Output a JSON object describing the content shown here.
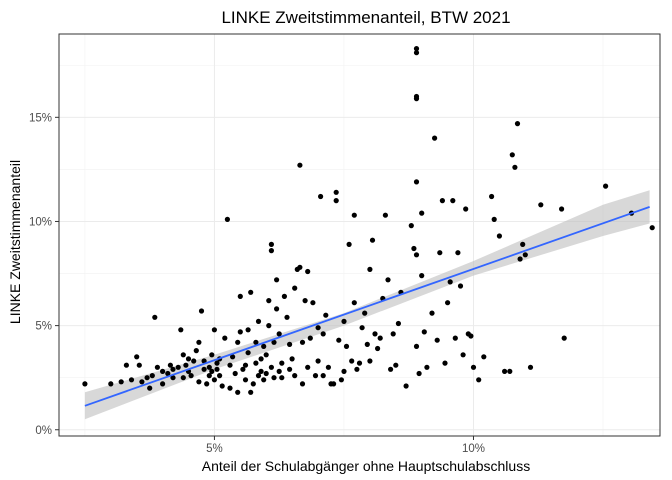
{
  "chart_data": {
    "type": "scatter",
    "title": "LINKE Zweitstimmenanteil, BTW 2021",
    "xlabel": "Anteil der Schulabgänger ohne Hauptschulabschluss",
    "ylabel": "LINKE Zweitstimmenanteil",
    "xlim": [
      2.0,
      13.6
    ],
    "ylim": [
      -0.3,
      19.0
    ],
    "x_ticks": [
      5,
      10
    ],
    "x_tick_labels": [
      "5%",
      "10%"
    ],
    "y_ticks": [
      0,
      5,
      10,
      15
    ],
    "y_tick_labels": [
      "0%",
      "5%",
      "10%",
      "15%"
    ],
    "grid": true,
    "legend": "none",
    "colors": {
      "points": "#000000",
      "trend": "#3366FF",
      "ribbon": "#BEBEBE"
    },
    "trend_line": {
      "x": [
        2.5,
        13.4
      ],
      "y": [
        1.15,
        10.7
      ]
    },
    "confidence_band": {
      "x": [
        2.5,
        5.0,
        7.5,
        10.0,
        12.5,
        13.4
      ],
      "lower": [
        0.5,
        2.9,
        5.0,
        7.4,
        9.3,
        9.9
      ],
      "upper": [
        1.8,
        3.6,
        5.6,
        8.1,
        10.8,
        11.5
      ]
    },
    "points": [
      [
        2.5,
        2.2
      ],
      [
        3.0,
        2.2
      ],
      [
        3.2,
        2.3
      ],
      [
        3.3,
        3.1
      ],
      [
        3.4,
        2.4
      ],
      [
        3.5,
        3.5
      ],
      [
        3.55,
        3.1
      ],
      [
        3.6,
        2.3
      ],
      [
        3.7,
        2.5
      ],
      [
        3.75,
        2.0
      ],
      [
        3.8,
        2.6
      ],
      [
        3.85,
        5.4
      ],
      [
        3.9,
        3.0
      ],
      [
        4.0,
        2.2
      ],
      [
        4.0,
        2.8
      ],
      [
        4.1,
        2.7
      ],
      [
        4.15,
        3.1
      ],
      [
        4.2,
        2.9
      ],
      [
        4.2,
        2.5
      ],
      [
        4.3,
        3.0
      ],
      [
        4.35,
        4.8
      ],
      [
        4.4,
        2.5
      ],
      [
        4.4,
        3.6
      ],
      [
        4.45,
        3.1
      ],
      [
        4.5,
        3.4
      ],
      [
        4.5,
        2.8
      ],
      [
        4.55,
        2.6
      ],
      [
        4.6,
        3.3
      ],
      [
        4.65,
        3.8
      ],
      [
        4.7,
        2.3
      ],
      [
        4.7,
        4.2
      ],
      [
        4.75,
        5.7
      ],
      [
        4.8,
        2.9
      ],
      [
        4.8,
        3.3
      ],
      [
        4.85,
        2.2
      ],
      [
        4.9,
        2.6
      ],
      [
        4.9,
        3.0
      ],
      [
        4.95,
        3.6
      ],
      [
        4.95,
        2.8
      ],
      [
        5.0,
        2.4
      ],
      [
        5.0,
        4.8
      ],
      [
        5.05,
        2.9
      ],
      [
        5.05,
        3.2
      ],
      [
        5.1,
        3.4
      ],
      [
        5.1,
        2.6
      ],
      [
        5.15,
        2.1
      ],
      [
        5.2,
        4.4
      ],
      [
        5.25,
        10.1
      ],
      [
        5.3,
        2.0
      ],
      [
        5.3,
        3.1
      ],
      [
        5.35,
        3.5
      ],
      [
        5.4,
        2.7
      ],
      [
        5.45,
        1.8
      ],
      [
        5.45,
        4.2
      ],
      [
        5.5,
        6.4
      ],
      [
        5.5,
        4.7
      ],
      [
        5.55,
        2.9
      ],
      [
        5.6,
        3.1
      ],
      [
        5.6,
        2.4
      ],
      [
        5.65,
        4.8
      ],
      [
        5.65,
        3.7
      ],
      [
        5.7,
        6.6
      ],
      [
        5.7,
        1.8
      ],
      [
        5.75,
        2.2
      ],
      [
        5.8,
        3.2
      ],
      [
        5.8,
        4.2
      ],
      [
        5.85,
        2.6
      ],
      [
        5.85,
        5.2
      ],
      [
        5.9,
        2.8
      ],
      [
        5.9,
        3.4
      ],
      [
        5.95,
        4.0
      ],
      [
        5.95,
        2.4
      ],
      [
        6.0,
        2.7
      ],
      [
        6.0,
        3.6
      ],
      [
        6.05,
        6.2
      ],
      [
        6.05,
        5.0
      ],
      [
        6.1,
        8.9
      ],
      [
        6.1,
        8.6
      ],
      [
        6.1,
        3.0
      ],
      [
        6.15,
        4.2
      ],
      [
        6.15,
        2.5
      ],
      [
        6.2,
        7.2
      ],
      [
        6.2,
        5.8
      ],
      [
        6.25,
        2.8
      ],
      [
        6.25,
        4.6
      ],
      [
        6.3,
        2.5
      ],
      [
        6.3,
        3.2
      ],
      [
        6.35,
        6.4
      ],
      [
        6.4,
        5.4
      ],
      [
        6.45,
        2.9
      ],
      [
        6.45,
        4.1
      ],
      [
        6.5,
        3.4
      ],
      [
        6.55,
        6.8
      ],
      [
        6.55,
        2.6
      ],
      [
        6.6,
        7.7
      ],
      [
        6.65,
        7.8
      ],
      [
        6.65,
        12.7
      ],
      [
        6.7,
        2.2
      ],
      [
        6.7,
        4.2
      ],
      [
        6.75,
        6.2
      ],
      [
        6.8,
        7.6
      ],
      [
        6.8,
        3.0
      ],
      [
        6.85,
        4.4
      ],
      [
        6.9,
        6.1
      ],
      [
        6.95,
        2.6
      ],
      [
        7.0,
        4.9
      ],
      [
        7.0,
        3.3
      ],
      [
        7.05,
        11.2
      ],
      [
        7.1,
        4.6
      ],
      [
        7.1,
        2.6
      ],
      [
        7.15,
        5.5
      ],
      [
        7.2,
        3.0
      ],
      [
        7.25,
        2.2
      ],
      [
        7.3,
        2.2
      ],
      [
        7.35,
        11.4
      ],
      [
        7.35,
        11.0
      ],
      [
        7.4,
        4.3
      ],
      [
        7.45,
        2.4
      ],
      [
        7.5,
        5.2
      ],
      [
        7.5,
        2.8
      ],
      [
        7.55,
        4.0
      ],
      [
        7.6,
        8.9
      ],
      [
        7.65,
        3.3
      ],
      [
        7.7,
        10.3
      ],
      [
        7.7,
        6.1
      ],
      [
        7.75,
        2.9
      ],
      [
        7.8,
        3.2
      ],
      [
        7.85,
        4.9
      ],
      [
        7.9,
        5.6
      ],
      [
        7.95,
        4.1
      ],
      [
        8.0,
        7.7
      ],
      [
        8.0,
        3.3
      ],
      [
        8.05,
        9.1
      ],
      [
        8.1,
        4.6
      ],
      [
        8.15,
        3.9
      ],
      [
        8.2,
        4.4
      ],
      [
        8.25,
        6.3
      ],
      [
        8.3,
        10.3
      ],
      [
        8.35,
        7.2
      ],
      [
        8.4,
        2.9
      ],
      [
        8.45,
        4.6
      ],
      [
        8.5,
        3.1
      ],
      [
        8.55,
        5.1
      ],
      [
        8.6,
        6.6
      ],
      [
        8.7,
        2.1
      ],
      [
        8.8,
        9.8
      ],
      [
        8.85,
        8.7
      ],
      [
        8.9,
        11.9
      ],
      [
        8.9,
        15.9
      ],
      [
        8.9,
        16.0
      ],
      [
        8.9,
        18.1
      ],
      [
        8.9,
        18.3
      ],
      [
        8.9,
        8.4
      ],
      [
        8.9,
        4.0
      ],
      [
        8.95,
        2.7
      ],
      [
        9.0,
        10.4
      ],
      [
        9.0,
        7.4
      ],
      [
        9.05,
        4.7
      ],
      [
        9.1,
        3.0
      ],
      [
        9.2,
        5.6
      ],
      [
        9.25,
        14.0
      ],
      [
        9.3,
        4.3
      ],
      [
        9.35,
        8.5
      ],
      [
        9.4,
        11.0
      ],
      [
        9.45,
        3.2
      ],
      [
        9.5,
        6.1
      ],
      [
        9.55,
        7.1
      ],
      [
        9.6,
        11.0
      ],
      [
        9.65,
        4.4
      ],
      [
        9.7,
        8.5
      ],
      [
        9.75,
        6.9
      ],
      [
        9.8,
        3.6
      ],
      [
        9.85,
        10.6
      ],
      [
        9.9,
        4.6
      ],
      [
        9.95,
        4.5
      ],
      [
        10.0,
        3.0
      ],
      [
        10.1,
        2.4
      ],
      [
        10.2,
        3.5
      ],
      [
        10.35,
        11.2
      ],
      [
        10.4,
        10.1
      ],
      [
        10.5,
        9.3
      ],
      [
        10.6,
        2.8
      ],
      [
        10.7,
        2.8
      ],
      [
        10.75,
        13.2
      ],
      [
        10.8,
        12.6
      ],
      [
        10.85,
        14.7
      ],
      [
        10.9,
        8.2
      ],
      [
        10.95,
        8.9
      ],
      [
        11.0,
        8.4
      ],
      [
        11.1,
        3.0
      ],
      [
        11.3,
        10.8
      ],
      [
        11.7,
        10.6
      ],
      [
        11.75,
        4.4
      ],
      [
        12.55,
        11.7
      ],
      [
        13.05,
        10.4
      ],
      [
        13.45,
        9.7
      ]
    ]
  }
}
